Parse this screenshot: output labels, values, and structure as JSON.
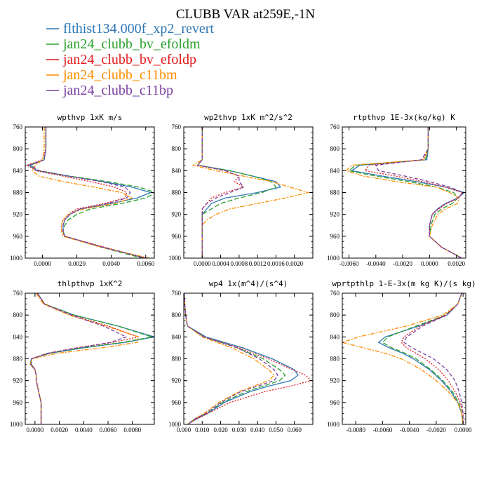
{
  "title": "CLUBB VAR at259E,-1N",
  "legend": [
    {
      "name": "flthist134.000f_xp2_revert",
      "color": "#2e78b4",
      "dash": ""
    },
    {
      "name": "jan24_clubb_bv_efoldm",
      "color": "#2ca02c",
      "dash": "7,3"
    },
    {
      "name": "jan24_clubb_bv_efoldp",
      "color": "#e41a1c",
      "dash": "2,2"
    },
    {
      "name": "jan24_clubb_c11bm",
      "color": "#ff8c00",
      "dash": "6,2,2,2"
    },
    {
      "name": "jan24_clubb_c11bp",
      "color": "#7b3fa0",
      "dash": "5,3"
    }
  ],
  "chart_data": [
    {
      "type": "line",
      "title": "wpthvp  1xK m/s",
      "xlim": [
        -0.001,
        0.0065
      ],
      "ylim": [
        760,
        1000
      ],
      "xticks": [
        0.0,
        0.002,
        0.004,
        0.006
      ],
      "xtick_labels": [
        "0.0000",
        "0.0020",
        "0.0040",
        "0.0060"
      ],
      "yticks": [
        760,
        800,
        840,
        880,
        920,
        960,
        1000
      ],
      "ytick_labels": [
        "760",
        "800",
        "840",
        "880",
        "920",
        "960",
        "1000"
      ],
      "y": [
        760,
        800,
        820,
        830,
        840,
        850,
        860,
        870,
        880,
        890,
        900,
        910,
        920,
        930,
        940,
        950,
        960,
        980,
        1000
      ],
      "series": [
        {
          "name": "flthist134.000f_xp2_revert",
          "values": [
            0.0002,
            0.0002,
            0.0001,
            -0.0008,
            -0.0003,
            0.0015,
            0.0035,
            0.0052,
            0.0063,
            0.0055,
            0.004,
            0.0022,
            0.0016,
            0.0013,
            0.0012,
            0.0012,
            0.0013,
            0.0035,
            0.006
          ]
        },
        {
          "name": "jan24_clubb_bv_efoldm",
          "values": [
            0.0002,
            0.0002,
            0.0001,
            -0.0007,
            -0.0002,
            0.0016,
            0.0038,
            0.0056,
            0.0066,
            0.006,
            0.0046,
            0.0028,
            0.002,
            0.0015,
            0.0013,
            0.0012,
            0.0013,
            0.0034,
            0.0058
          ]
        },
        {
          "name": "jan24_clubb_bv_efoldp",
          "values": [
            0.0002,
            0.0002,
            0.0,
            -0.0009,
            -0.0004,
            0.0012,
            0.0028,
            0.0042,
            0.0049,
            0.0048,
            0.0036,
            0.002,
            0.0015,
            0.0012,
            0.0011,
            0.0011,
            0.0013,
            0.0036,
            0.006
          ]
        },
        {
          "name": "jan24_clubb_c11bm",
          "values": [
            0.0001,
            0.0001,
            0.0,
            -0.0004,
            -0.0006,
            -0.0002,
            0.0012,
            0.003,
            0.0046,
            0.0052,
            0.0042,
            0.0024,
            0.0015,
            0.0012,
            0.0011,
            0.0011,
            0.0012,
            0.0034,
            0.0062
          ]
        },
        {
          "name": "jan24_clubb_c11bp",
          "values": [
            0.0002,
            0.0002,
            0.0001,
            -0.0007,
            -0.0002,
            0.0015,
            0.0034,
            0.0048,
            0.0051,
            0.0049,
            0.0038,
            0.0022,
            0.0016,
            0.0013,
            0.0012,
            0.0012,
            0.0013,
            0.0035,
            0.006
          ]
        }
      ]
    },
    {
      "type": "line",
      "title": "wp2thvp  1xK m^2/s^2",
      "xlim": [
        -0.0004,
        0.0024
      ],
      "ylim": [
        760,
        1000
      ],
      "xticks": [
        0.0,
        0.0004,
        0.0008,
        0.0012,
        0.0016,
        0.002
      ],
      "xtick_labels": [
        "0.0000",
        "0.0004",
        "0.0008",
        "0.0012",
        "0.0016",
        "0.0020"
      ],
      "yticks": [
        760,
        800,
        840,
        880,
        920,
        960,
        1000
      ],
      "ytick_labels": [
        "760",
        "800",
        "840",
        "880",
        "920",
        "960",
        "1000"
      ],
      "y": [
        760,
        800,
        820,
        830,
        840,
        850,
        860,
        870,
        880,
        890,
        900,
        910,
        920,
        930,
        940,
        960,
        980,
        1000
      ],
      "series": [
        {
          "name": "flthist134.000f_xp2_revert",
          "values": [
            0.0,
            0.0,
            0.0,
            -0.0001,
            0.0006,
            0.0011,
            0.0016,
            0.0017,
            0.0012,
            0.0005,
            0.0002,
            0.0001,
            0.0,
            0.0,
            0.0,
            0.0,
            0.0,
            0.0
          ]
        },
        {
          "name": "jan24_clubb_bv_efoldm",
          "values": [
            0.0,
            0.0,
            0.0,
            -0.0001,
            0.0006,
            0.0011,
            0.0015,
            0.0016,
            0.0013,
            0.0008,
            0.0004,
            0.0002,
            0.0,
            0.0,
            0.0,
            0.0,
            0.0,
            0.0
          ]
        },
        {
          "name": "jan24_clubb_bv_efoldp",
          "values": [
            0.0,
            0.0,
            0.0,
            -0.0001,
            0.0005,
            0.0008,
            0.0007,
            0.0009,
            0.0005,
            0.0002,
            0.0001,
            0.0,
            0.0,
            0.0,
            0.0,
            0.0,
            0.0,
            0.0
          ]
        },
        {
          "name": "jan24_clubb_c11bm",
          "values": [
            0.0,
            0.0,
            0.0,
            -0.0002,
            0.0003,
            0.0009,
            0.0015,
            0.0019,
            0.0023,
            0.0018,
            0.0012,
            0.0006,
            0.0003,
            0.0001,
            0.0,
            0.0,
            0.0,
            0.0
          ]
        },
        {
          "name": "jan24_clubb_c11bp",
          "values": [
            0.0,
            0.0,
            0.0,
            -0.0001,
            0.0005,
            0.0008,
            0.0008,
            0.0009,
            0.0006,
            0.0003,
            0.0001,
            0.0,
            0.0,
            0.0,
            0.0,
            0.0,
            0.0,
            0.0
          ]
        }
      ]
    },
    {
      "type": "line",
      "title": "rtpthvp  1E-3x(kg/kg) K",
      "xlim": [
        -0.0065,
        0.0027
      ],
      "ylim": [
        760,
        1000
      ],
      "xticks": [
        -0.006,
        -0.004,
        -0.002,
        0.0,
        0.002
      ],
      "xtick_labels": [
        "-0.0060",
        "-0.0040",
        "-0.0020",
        "0.0000",
        "0.0020"
      ],
      "yticks": [
        760,
        800,
        840,
        880,
        920,
        960,
        1000
      ],
      "ytick_labels": [
        "760",
        "800",
        "840",
        "880",
        "920",
        "960",
        "1000"
      ],
      "y": [
        760,
        800,
        820,
        830,
        840,
        850,
        860,
        870,
        880,
        890,
        900,
        910,
        920,
        940,
        960,
        980,
        1000
      ],
      "series": [
        {
          "name": "flthist134.000f_xp2_revert",
          "values": [
            -0.0001,
            -0.0001,
            -0.0002,
            -0.0052,
            -0.0058,
            -0.0035,
            -0.001,
            0.0012,
            0.0026,
            0.0021,
            0.0012,
            0.0006,
            0.0002,
            0.0,
            0.0,
            0.0009,
            0.0024
          ]
        },
        {
          "name": "jan24_clubb_bv_efoldm",
          "values": [
            -0.0001,
            -0.0001,
            -0.0003,
            -0.0055,
            -0.006,
            -0.004,
            -0.0015,
            0.0005,
            0.0018,
            0.0021,
            0.0017,
            0.0009,
            0.0004,
            0.0001,
            0.0,
            0.0009,
            0.0024
          ]
        },
        {
          "name": "jan24_clubb_bv_efoldp",
          "values": [
            -0.0001,
            -0.0001,
            -0.0005,
            -0.0045,
            -0.0048,
            -0.0025,
            -0.0005,
            0.0012,
            0.0024,
            0.0022,
            0.0013,
            0.0007,
            0.0002,
            0.0,
            0.0,
            0.0009,
            0.0024
          ]
        },
        {
          "name": "jan24_clubb_c11bm",
          "values": [
            -0.0001,
            -0.0001,
            -0.0004,
            -0.0058,
            -0.0062,
            -0.0049,
            -0.0025,
            0.0005,
            0.0015,
            0.0022,
            0.0021,
            0.0012,
            0.0006,
            0.0002,
            0.0,
            0.0009,
            0.0024
          ]
        },
        {
          "name": "jan24_clubb_c11bp",
          "values": [
            -0.0001,
            -0.0001,
            -0.0006,
            -0.004,
            -0.0038,
            -0.0018,
            0.0,
            0.0015,
            0.0025,
            0.0021,
            0.0012,
            0.0006,
            0.0002,
            0.0,
            0.0,
            0.0009,
            0.0024
          ]
        }
      ]
    },
    {
      "type": "line",
      "title": "thlpthvp  1xK^2",
      "xlim": [
        -0.0008,
        0.0098
      ],
      "ylim": [
        760,
        1000
      ],
      "xticks": [
        0.0,
        0.002,
        0.004,
        0.006,
        0.008
      ],
      "xtick_labels": [
        "0.0000",
        "0.0020",
        "0.0040",
        "0.0060",
        "0.0080"
      ],
      "yticks": [
        760,
        800,
        840,
        880,
        920,
        960,
        1000
      ],
      "ytick_labels": [
        "760",
        "800",
        "840",
        "880",
        "920",
        "960",
        "1000"
      ],
      "y": [
        760,
        780,
        800,
        820,
        840,
        850,
        860,
        870,
        880,
        890,
        900,
        910,
        920,
        940,
        960,
        980,
        1000
      ],
      "series": [
        {
          "name": "flthist134.000f_xp2_revert",
          "values": [
            0.0002,
            0.0008,
            0.0032,
            0.0068,
            0.0098,
            0.0074,
            0.004,
            0.0012,
            -0.0003,
            -0.0004,
            0.0,
            0.0001,
            0.0001,
            0.0003,
            0.0005,
            0.0005,
            0.0005
          ]
        },
        {
          "name": "jan24_clubb_bv_efoldm",
          "values": [
            0.0002,
            0.0008,
            0.0032,
            0.0068,
            0.0096,
            0.0072,
            0.0038,
            0.0011,
            -0.0003,
            -0.0003,
            0.0,
            0.0001,
            0.0001,
            0.0003,
            0.0005,
            0.0005,
            0.0005
          ]
        },
        {
          "name": "jan24_clubb_bv_efoldp",
          "values": [
            0.0002,
            0.0008,
            0.003,
            0.006,
            0.0085,
            0.0064,
            0.0034,
            0.001,
            -0.0003,
            -0.0003,
            0.0,
            0.0001,
            0.0001,
            0.0003,
            0.0005,
            0.0005,
            0.0005
          ]
        },
        {
          "name": "jan24_clubb_c11bm",
          "values": [
            0.0001,
            0.0007,
            0.0028,
            0.0058,
            0.0085,
            0.0084,
            0.0055,
            0.0018,
            -0.0002,
            -0.0004,
            0.0,
            0.0001,
            0.0001,
            0.0003,
            0.0005,
            0.0005,
            0.0005
          ]
        },
        {
          "name": "jan24_clubb_c11bp",
          "values": [
            0.0002,
            0.0008,
            0.003,
            0.0056,
            0.0075,
            0.0062,
            0.0035,
            0.001,
            -0.0003,
            -0.0003,
            0.0,
            0.0001,
            0.0001,
            0.0003,
            0.0005,
            0.0005,
            0.0005
          ]
        }
      ]
    },
    {
      "type": "line",
      "title": "wp4  1x(m^4)/(s^4)",
      "xlim": [
        0.0,
        0.07
      ],
      "ylim": [
        760,
        1000
      ],
      "xticks": [
        0.0,
        0.01,
        0.02,
        0.03,
        0.04,
        0.05,
        0.06
      ],
      "xtick_labels": [
        "0.000",
        "0.010",
        "0.020",
        "0.030",
        "0.040",
        "0.050",
        "0.060"
      ],
      "yticks": [
        760,
        800,
        840,
        880,
        920,
        960,
        1000
      ],
      "ytick_labels": [
        "760",
        "800",
        "840",
        "880",
        "920",
        "960",
        "1000"
      ],
      "y": [
        760,
        780,
        800,
        820,
        840,
        860,
        880,
        900,
        910,
        920,
        930,
        940,
        960,
        980,
        990,
        1000
      ],
      "series": [
        {
          "name": "flthist134.000f_xp2_revert",
          "values": [
            0.0003,
            0.0005,
            0.001,
            0.002,
            0.012,
            0.032,
            0.048,
            0.06,
            0.062,
            0.058,
            0.046,
            0.036,
            0.022,
            0.013,
            0.007,
            0.002
          ]
        },
        {
          "name": "jan24_clubb_bv_efoldm",
          "values": [
            0.0003,
            0.0005,
            0.001,
            0.002,
            0.011,
            0.029,
            0.043,
            0.052,
            0.055,
            0.052,
            0.043,
            0.034,
            0.021,
            0.012,
            0.006,
            0.002
          ]
        },
        {
          "name": "jan24_clubb_bv_efoldp",
          "values": [
            0.0003,
            0.0005,
            0.001,
            0.002,
            0.011,
            0.03,
            0.046,
            0.059,
            0.066,
            0.069,
            0.058,
            0.044,
            0.025,
            0.013,
            0.007,
            0.002
          ]
        },
        {
          "name": "jan24_clubb_c11bm",
          "values": [
            0.0003,
            0.0005,
            0.001,
            0.002,
            0.01,
            0.026,
            0.038,
            0.046,
            0.049,
            0.046,
            0.038,
            0.03,
            0.019,
            0.011,
            0.006,
            0.002
          ]
        },
        {
          "name": "jan24_clubb_c11bp",
          "values": [
            0.0003,
            0.0005,
            0.001,
            0.002,
            0.011,
            0.029,
            0.041,
            0.049,
            0.051,
            0.049,
            0.04,
            0.031,
            0.02,
            0.012,
            0.006,
            0.002
          ]
        }
      ]
    },
    {
      "type": "line",
      "title": "wprtpthlp  1-E-3x(m kg K)/(s kg)",
      "xlim": [
        -0.009,
        0.0002
      ],
      "ylim": [
        760,
        1000
      ],
      "xticks": [
        -0.008,
        -0.006,
        -0.004,
        -0.002,
        0.0
      ],
      "xtick_labels": [
        "-0.0080",
        "-0.0060",
        "-0.0040",
        "-0.0020",
        "0.0000"
      ],
      "yticks": [
        760,
        800,
        840,
        880,
        920,
        960,
        1000
      ],
      "ytick_labels": [
        "760",
        "800",
        "840",
        "880",
        "920",
        "960",
        "1000"
      ],
      "y": [
        760,
        780,
        800,
        820,
        840,
        850,
        860,
        870,
        880,
        900,
        920,
        940,
        960,
        980,
        1000
      ],
      "series": [
        {
          "name": "flthist134.000f_xp2_revert",
          "values": [
            -0.0001,
            -0.0004,
            -0.0012,
            -0.0033,
            -0.0058,
            -0.0063,
            -0.0055,
            -0.0045,
            -0.0037,
            -0.0025,
            -0.0016,
            -0.0009,
            -0.0004,
            -0.0001,
            0.0
          ]
        },
        {
          "name": "jan24_clubb_bv_efoldm",
          "values": [
            -0.0001,
            -0.0004,
            -0.0013,
            -0.0035,
            -0.0056,
            -0.006,
            -0.0053,
            -0.0043,
            -0.0035,
            -0.0024,
            -0.0015,
            -0.0008,
            -0.0003,
            -0.0001,
            0.0
          ]
        },
        {
          "name": "jan24_clubb_bv_efoldp",
          "values": [
            -0.0001,
            -0.0004,
            -0.0013,
            -0.0032,
            -0.0044,
            -0.0046,
            -0.0042,
            -0.0035,
            -0.0028,
            -0.0018,
            -0.0011,
            -0.0006,
            -0.0002,
            0.0,
            0.0
          ]
        },
        {
          "name": "jan24_clubb_c11bm",
          "values": [
            -0.0001,
            -0.0004,
            -0.0015,
            -0.0042,
            -0.0078,
            -0.009,
            -0.0074,
            -0.0058,
            -0.0046,
            -0.0031,
            -0.002,
            -0.0011,
            -0.0004,
            -0.0001,
            0.0
          ]
        },
        {
          "name": "jan24_clubb_c11bp",
          "values": [
            -0.0001,
            -0.0004,
            -0.0012,
            -0.003,
            -0.0042,
            -0.0044,
            -0.0038,
            -0.003,
            -0.0022,
            -0.0012,
            -0.0006,
            -0.0003,
            -0.0001,
            0.0,
            0.0
          ]
        }
      ]
    }
  ]
}
